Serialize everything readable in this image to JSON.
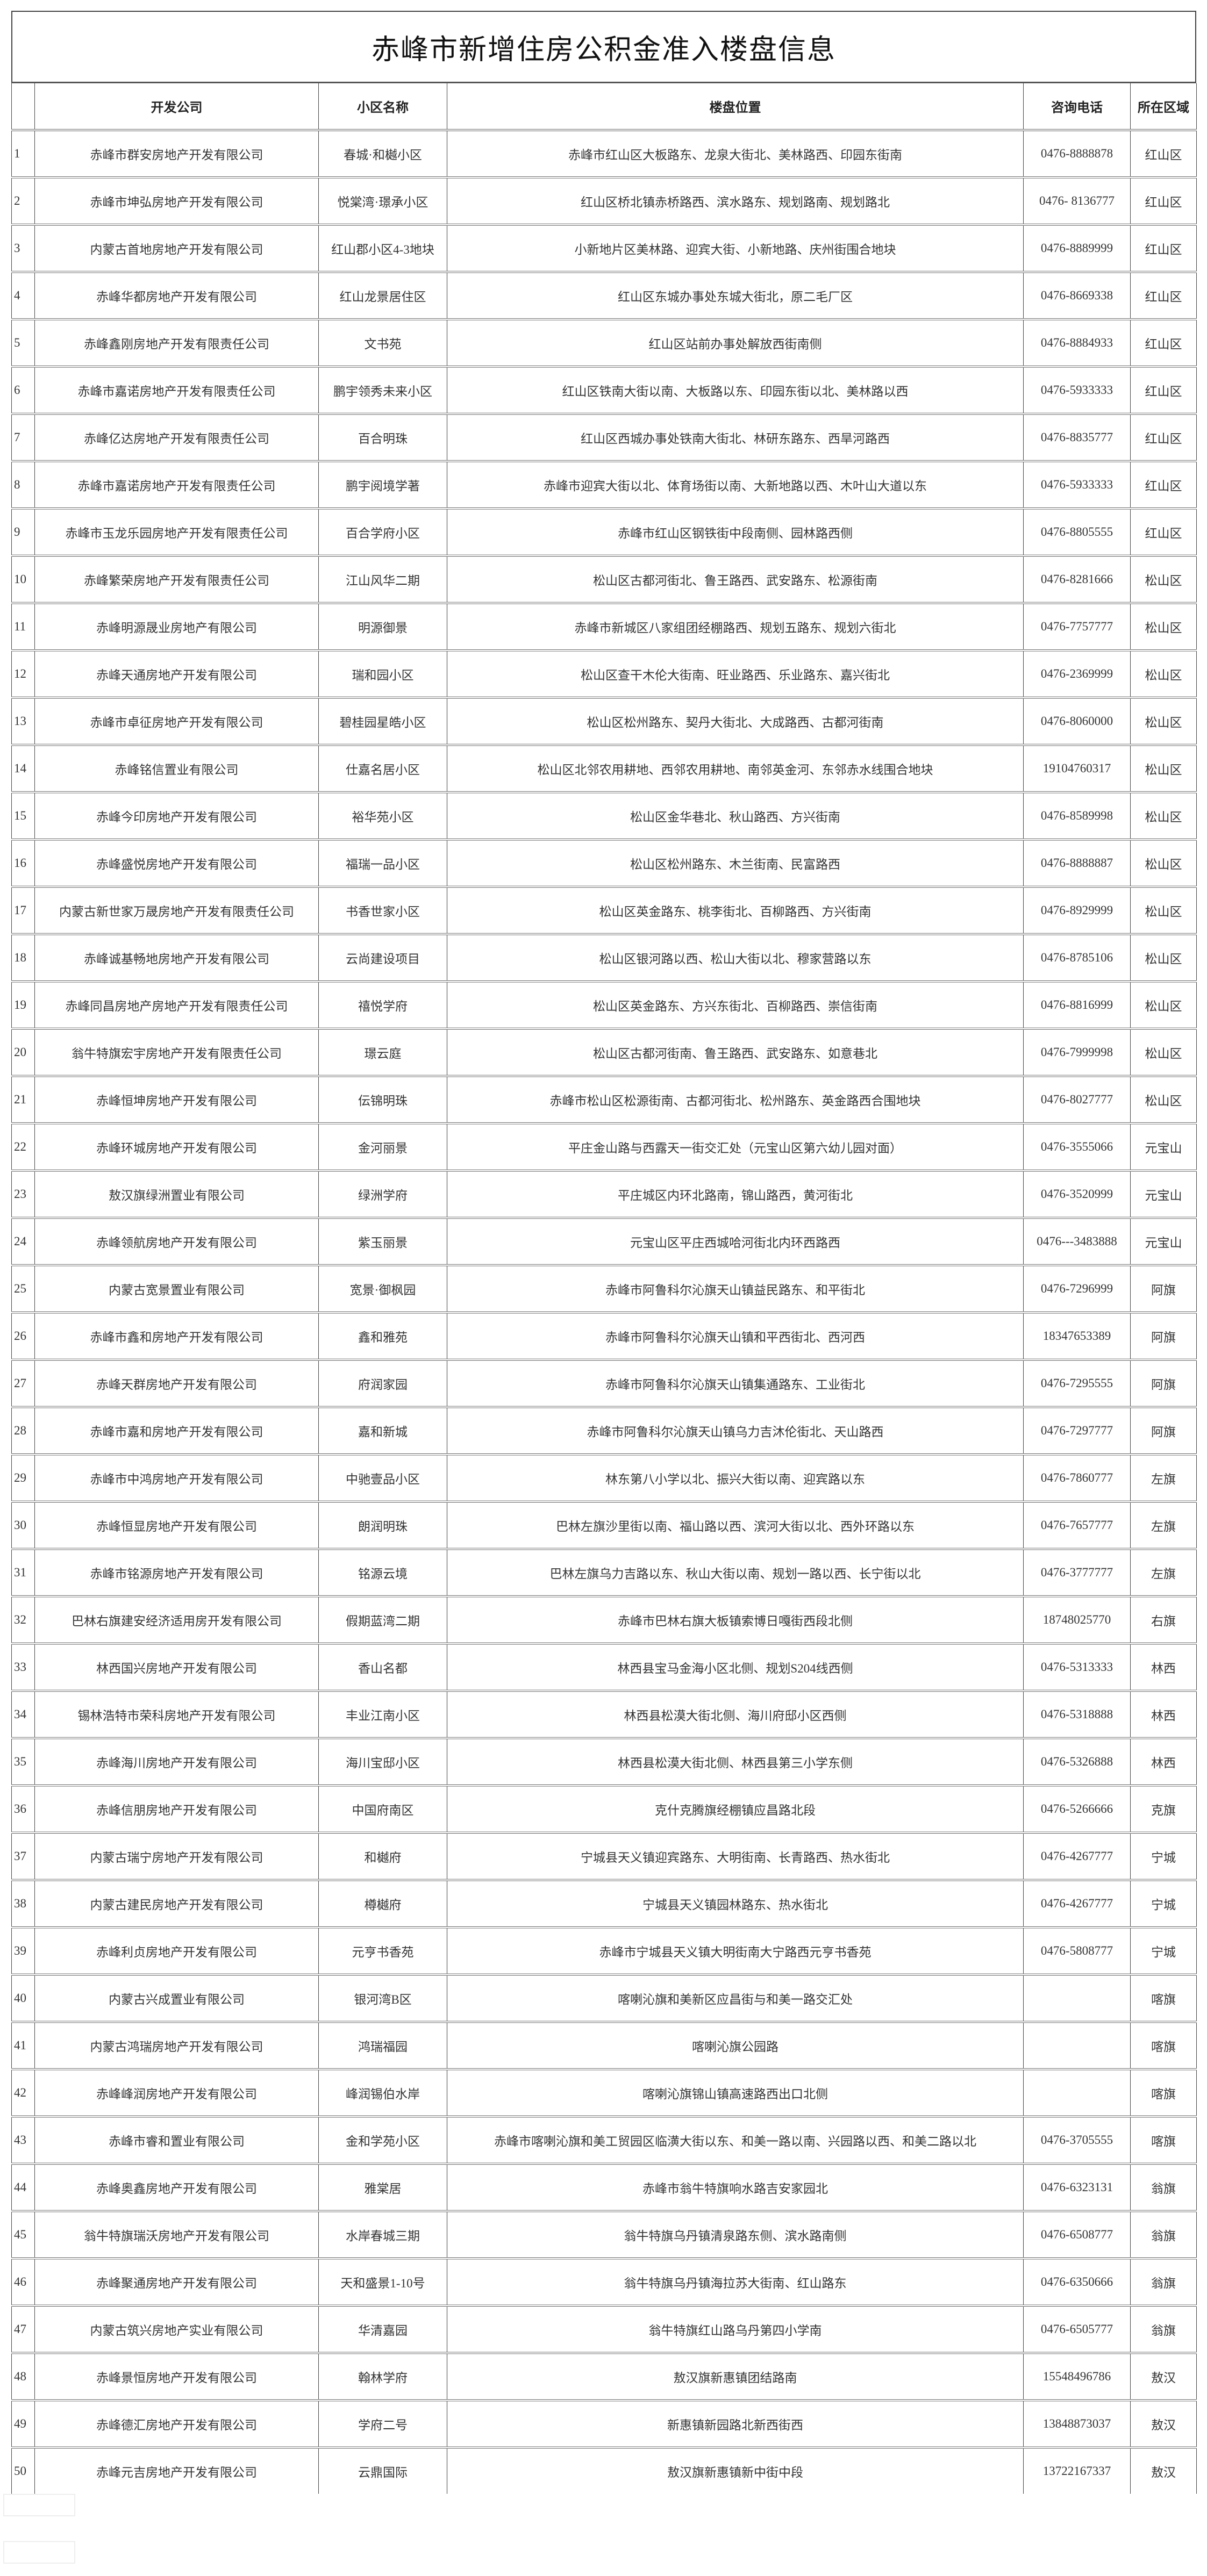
{
  "title": "赤峰市新增住房公积金准入楼盘信息",
  "headers": {
    "index": "",
    "company": "开发公司",
    "community": "小区名称",
    "location": "楼盘位置",
    "phone": "咨询电话",
    "region": "所在区域"
  },
  "rows": [
    [
      "1",
      "赤峰市群安房地产开发有限公司",
      "春城·和樾小区",
      "赤峰市红山区大板路东、龙泉大街北、美林路西、印园东街南",
      "0476-8888878",
      "红山区"
    ],
    [
      "2",
      "赤峰市坤弘房地产开发有限公司",
      "悦棠湾·璟承小区",
      "红山区桥北镇赤桥路西、滨水路东、规划路南、规划路北",
      "0476- 8136777",
      "红山区"
    ],
    [
      "3",
      "内蒙古首地房地产开发有限公司",
      "红山郡小区4-3地块",
      "小新地片区美林路、迎宾大街、小新地路、庆州街围合地块",
      "0476-8889999",
      "红山区"
    ],
    [
      "4",
      "赤峰华都房地产开发有限公司",
      "红山龙景居住区",
      "红山区东城办事处东城大街北，原二毛厂区",
      "0476-8669338",
      "红山区"
    ],
    [
      "5",
      "赤峰鑫刚房地产开发有限责任公司",
      "文书苑",
      "红山区站前办事处解放西街南侧",
      "0476-8884933",
      "红山区"
    ],
    [
      "6",
      "赤峰市嘉诺房地产开发有限责任公司",
      "鹏宇领秀未来小区",
      "红山区铁南大街以南、大板路以东、印园东街以北、美林路以西",
      "0476-5933333",
      "红山区"
    ],
    [
      "7",
      "赤峰亿达房地产开发有限责任公司",
      "百合明珠",
      "红山区西城办事处铁南大街北、林研东路东、西旱河路西",
      "0476-8835777",
      "红山区"
    ],
    [
      "8",
      "赤峰市嘉诺房地产开发有限责任公司",
      "鹏宇阅境学著",
      "赤峰市迎宾大街以北、体育场街以南、大新地路以西、木叶山大道以东",
      "0476-5933333",
      "红山区"
    ],
    [
      "9",
      "赤峰市玉龙乐园房地产开发有限责任公司",
      "百合学府小区",
      "赤峰市红山区钢铁街中段南侧、园林路西侧",
      "0476-8805555",
      "红山区"
    ],
    [
      "10",
      "赤峰繁荣房地产开发有限责任公司",
      "江山风华二期",
      "松山区古都河街北、鲁王路西、武安路东、松源街南",
      "0476-8281666",
      "松山区"
    ],
    [
      "11",
      "赤峰明源晟业房地产有限公司",
      "明源御景",
      "赤峰市新城区八家组团经棚路西、规划五路东、规划六街北",
      "0476-7757777",
      "松山区"
    ],
    [
      "12",
      "赤峰天通房地产开发有限公司",
      "瑞和园小区",
      "松山区查干木伦大街南、旺业路西、乐业路东、嘉兴街北",
      "0476-2369999",
      "松山区"
    ],
    [
      "13",
      "赤峰市卓征房地产开发有限公司",
      "碧桂园星皓小区",
      "松山区松州路东、契丹大街北、大成路西、古都河街南",
      "0476-8060000",
      "松山区"
    ],
    [
      "14",
      "赤峰铭信置业有限公司",
      "仕嘉名居小区",
      "松山区北邻农用耕地、西邻农用耕地、南邻英金河、东邻赤水线围合地块",
      "19104760317",
      "松山区"
    ],
    [
      "15",
      "赤峰今印房地产开发有限公司",
      "裕华苑小区",
      "松山区金华巷北、秋山路西、方兴街南",
      "0476-8589998",
      "松山区"
    ],
    [
      "16",
      "赤峰盛悦房地产开发有限公司",
      "福瑞一品小区",
      "松山区松州路东、木兰街南、民富路西",
      "0476-8888887",
      "松山区"
    ],
    [
      "17",
      "内蒙古新世家万晟房地产开发有限责任公司",
      "书香世家小区",
      "松山区英金路东、桃李街北、百柳路西、方兴街南",
      "0476-8929999",
      "松山区"
    ],
    [
      "18",
      "赤峰诚基畅地房地产开发有限公司",
      "云尚建设项目",
      "松山区银河路以西、松山大街以北、穆家营路以东",
      "0476-8785106",
      "松山区"
    ],
    [
      "19",
      "赤峰同昌房地产房地产开发有限责任公司",
      "禧悦学府",
      "松山区英金路东、方兴东街北、百柳路西、崇信街南",
      "0476-8816999",
      "松山区"
    ],
    [
      "20",
      "翁牛特旗宏宇房地产开发有限责任公司",
      "璟云庭",
      "松山区古都河街南、鲁王路西、武安路东、如意巷北",
      "0476-7999998",
      "松山区"
    ],
    [
      "21",
      "赤峰恒坤房地产开发有限公司",
      "伝锦明珠",
      "赤峰市松山区松源街南、古都河街北、松州路东、英金路西合围地块",
      "0476-8027777",
      "松山区"
    ],
    [
      "22",
      "赤峰环城房地产开发有限公司",
      "金河丽景",
      "平庄金山路与西露天一街交汇处（元宝山区第六幼儿园对面）",
      "0476-3555066",
      "元宝山"
    ],
    [
      "23",
      "敖汉旗绿洲置业有限公司",
      "绿洲学府",
      "平庄城区内环北路南，锦山路西，黄河街北",
      "0476-3520999",
      "元宝山"
    ],
    [
      "24",
      "赤峰领航房地产开发有限公司",
      "紫玉丽景",
      "元宝山区平庄西城哈河街北内环西路西",
      "0476---3483888",
      "元宝山"
    ],
    [
      "25",
      "内蒙古宽景置业有限公司",
      "宽景·御枫园",
      "赤峰市阿鲁科尔沁旗天山镇益民路东、和平街北",
      "0476-7296999",
      "阿旗"
    ],
    [
      "26",
      "赤峰市鑫和房地产开发有限公司",
      "鑫和雅苑",
      "赤峰市阿鲁科尔沁旗天山镇和平西街北、西河西",
      "18347653389",
      "阿旗"
    ],
    [
      "27",
      "赤峰天群房地产开发有限公司",
      "府润家园",
      "赤峰市阿鲁科尔沁旗天山镇集通路东、工业街北",
      "0476-7295555",
      "阿旗"
    ],
    [
      "28",
      "赤峰市嘉和房地产开发有限公司",
      "嘉和新城",
      "赤峰市阿鲁科尔沁旗天山镇乌力吉沐伦街北、天山路西",
      "0476-7297777",
      "阿旗"
    ],
    [
      "29",
      "赤峰市中鸿房地产开发有限公司",
      "中驰壹品小区",
      "林东第八小学以北、振兴大街以南、迎宾路以东",
      "0476-7860777",
      "左旗"
    ],
    [
      "30",
      "赤峰恒显房地产开发有限公司",
      "朗润明珠",
      "巴林左旗沙里街以南、福山路以西、滨河大街以北、西外环路以东",
      "0476-7657777",
      "左旗"
    ],
    [
      "31",
      "赤峰市铭源房地产开发有限公司",
      "铭源云境",
      "巴林左旗乌力吉路以东、秋山大街以南、规划一路以西、长宁街以北",
      "0476-3777777",
      "左旗"
    ],
    [
      "32",
      "巴林右旗建安经济适用房开发有限公司",
      "假期蓝湾二期",
      "赤峰市巴林右旗大板镇索博日嘎街西段北侧",
      "18748025770",
      "右旗"
    ],
    [
      "33",
      "林西国兴房地产开发有限公司",
      "香山名都",
      "林西县宝马金海小区北侧、规划S204线西侧",
      "0476-5313333",
      "林西"
    ],
    [
      "34",
      "锡林浩特市荣科房地产开发有限公司",
      "丰业江南小区",
      "林西县松漠大街北侧、海川府邸小区西侧",
      "0476-5318888",
      "林西"
    ],
    [
      "35",
      "赤峰海川房地产开发有限公司",
      "海川宝邸小区",
      "林西县松漠大街北侧、林西县第三小学东侧",
      "0476-5326888",
      "林西"
    ],
    [
      "36",
      "赤峰信朋房地产开发有限公司",
      "中国府南区",
      "克什克腾旗经棚镇应昌路北段",
      "0476-5266666",
      "克旗"
    ],
    [
      "37",
      "内蒙古瑞宁房地产开发有限公司",
      "和樾府",
      "宁城县天义镇迎宾路东、大明街南、长青路西、热水街北",
      "0476-4267777",
      "宁城"
    ],
    [
      "38",
      "内蒙古建民房地产开发有限公司",
      "樽樾府",
      "宁城县天义镇园林路东、热水街北",
      "0476-4267777",
      "宁城"
    ],
    [
      "39",
      "赤峰利贞房地产开发有限公司",
      "元亨书香苑",
      "赤峰市宁城县天义镇大明街南大宁路西元亨书香苑",
      "0476-5808777",
      "宁城"
    ],
    [
      "40",
      "内蒙古兴成置业有限公司",
      "银河湾B区",
      "喀喇沁旗和美新区应昌街与和美一路交汇处",
      "",
      "喀旗"
    ],
    [
      "41",
      "内蒙古鸿瑞房地产开发有限公司",
      "鸿瑞福园",
      "喀喇沁旗公园路",
      "",
      "喀旗"
    ],
    [
      "42",
      "赤峰峰润房地产开发有限公司",
      "峰润锡伯水岸",
      "喀喇沁旗锦山镇高速路西出口北侧",
      "",
      "喀旗"
    ],
    [
      "43",
      "赤峰市睿和置业有限公司",
      "金和学苑小区",
      "赤峰市喀喇沁旗和美工贸园区临潢大街以东、和美一路以南、兴园路以西、和美二路以北",
      "0476-3705555",
      "喀旗"
    ],
    [
      "44",
      "赤峰奥鑫房地产开发有限公司",
      "雅棠居",
      "赤峰市翁牛特旗响水路吉安家园北",
      "0476-6323131",
      "翁旗"
    ],
    [
      "45",
      "翁牛特旗瑞沃房地产开发有限公司",
      "水岸春城三期",
      "翁牛特旗乌丹镇清泉路东侧、滨水路南侧",
      "0476-6508777",
      "翁旗"
    ],
    [
      "46",
      "赤峰聚通房地产开发有限公司",
      "天和盛景1-10号",
      "翁牛特旗乌丹镇海拉苏大街南、红山路东",
      "0476-6350666",
      "翁旗"
    ],
    [
      "47",
      "内蒙古筑兴房地产实业有限公司",
      "华清嘉园",
      "翁牛特旗红山路乌丹第四小学南",
      "0476-6505777",
      "翁旗"
    ],
    [
      "48",
      "赤峰景恒房地产开发有限公司",
      "翰林学府",
      "敖汉旗新惠镇团结路南",
      "15548496786",
      "敖汉"
    ],
    [
      "49",
      "赤峰德汇房地产开发有限公司",
      "学府二号",
      "新惠镇新园路北新西街西",
      "13848873037",
      "敖汉"
    ],
    [
      "50",
      "赤峰元吉房地产开发有限公司",
      "云鼎国际",
      "敖汉旗新惠镇新中街中段",
      "13722167337",
      "敖汉"
    ]
  ]
}
